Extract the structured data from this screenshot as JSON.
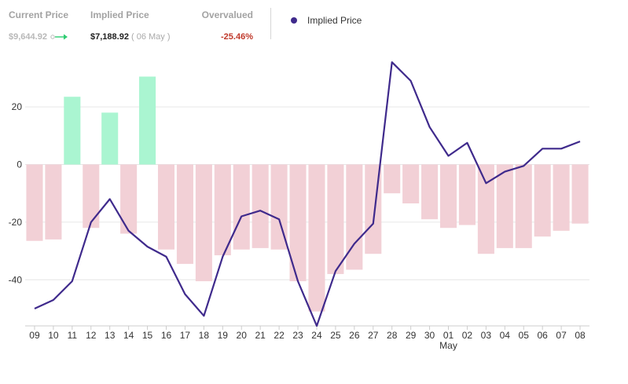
{
  "header": {
    "current_label": "Current Price",
    "current_value": "$9,644.92",
    "implied_label": "Implied Price",
    "implied_value": "$7,188.92",
    "implied_date": "( 06 May )",
    "over_label": "Overvalued",
    "over_value": "-25.46%"
  },
  "colors": {
    "line": "#3f2a8c",
    "bar_negative": "#f2d0d6",
    "bar_positive": "#aaf5d1",
    "change_negative": "#c0392b",
    "arrow": "#2ecc71"
  },
  "chart_data": {
    "type": "bar",
    "title": "",
    "xlabel": "",
    "ylabel": "",
    "categories": [
      "09",
      "10",
      "11",
      "12",
      "13",
      "14",
      "15",
      "16",
      "17",
      "18",
      "19",
      "20",
      "21",
      "22",
      "23",
      "24",
      "25",
      "26",
      "27",
      "28",
      "29",
      "30",
      "01",
      "02",
      "03",
      "04",
      "05",
      "06",
      "07",
      "08"
    ],
    "month_label": {
      "category": "01",
      "text": "May"
    },
    "ylim": [
      -56,
      38
    ],
    "yticks": [
      20,
      0,
      -20,
      -40
    ],
    "grid": true,
    "series": [
      {
        "type": "bar",
        "values": [
          -26.5,
          -26,
          23.5,
          -22,
          18,
          -24,
          30.5,
          -29.5,
          -34.5,
          -40.5,
          -31.5,
          -29.5,
          -29,
          -29.5,
          -40.5,
          -51,
          -38,
          -36.5,
          -31,
          -10,
          -13.5,
          -19,
          -22,
          -21,
          -31,
          -29,
          -29,
          -25,
          -23,
          -20.5
        ]
      },
      {
        "type": "line",
        "name": "Implied Price",
        "values": [
          -50,
          -47,
          -40.5,
          -20,
          -12,
          -23,
          -28.5,
          -32,
          -45,
          -52.5,
          -32,
          -18,
          -16,
          -19,
          -40.5,
          -56,
          -37,
          -27.5,
          -20.5,
          35.5,
          29,
          13,
          3,
          7.5,
          -6.5,
          -2.5,
          -0.5,
          5.5,
          5.5,
          8
        ]
      }
    ]
  }
}
